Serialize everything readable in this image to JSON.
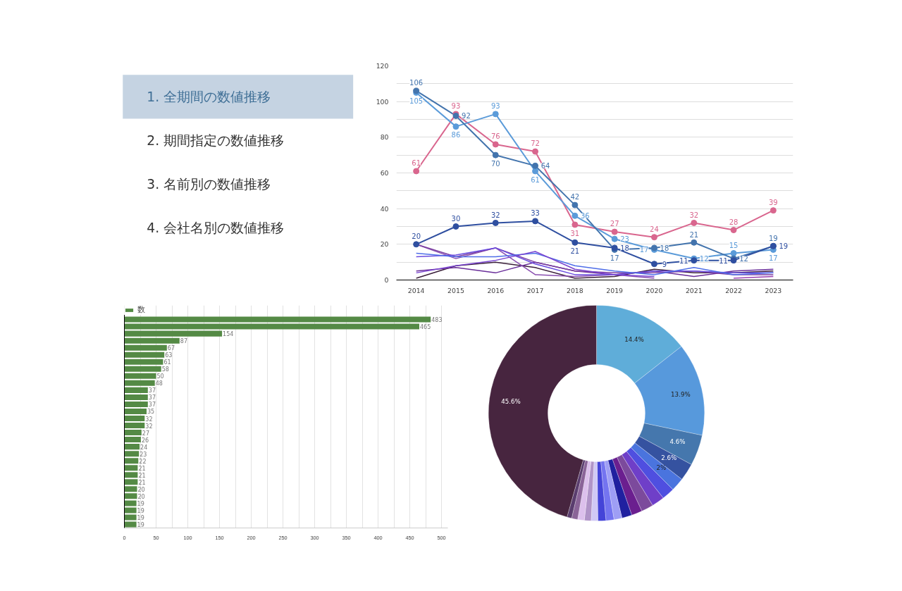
{
  "chart_data": [
    {
      "type": "other",
      "annotations": [
        "1. 全期間の数値推移",
        "2. 期間指定の数値推移",
        "3. 名前別の数値推移",
        "4. 会社名別の数値推移"
      ]
    },
    {
      "type": "line",
      "categories": [
        "2014",
        "2015",
        "2016",
        "2017",
        "2018",
        "2019",
        "2020",
        "2021",
        "2022",
        "2023"
      ],
      "ylim": [
        0,
        120
      ],
      "yticks": [
        0,
        {
          "value": 10,
          "label": null
        },
        20,
        {
          "value": 30,
          "label": null
        },
        40,
        {
          "value": 50,
          "label": null
        },
        60,
        {
          "value": 70,
          "label": null
        },
        80,
        {
          "value": 90,
          "label": null
        },
        100,
        {
          "value": 110,
          "label": null
        },
        120
      ],
      "grid": "y",
      "legend": false,
      "series": [
        {
          "color": "#3a1f3a",
          "marker": "none",
          "values": [
            1,
            8,
            10,
            7,
            1,
            2,
            6,
            4,
            4,
            5
          ]
        },
        {
          "color": "#6a2f9a",
          "marker": "none",
          "values": [
            5,
            7,
            4,
            10,
            5,
            3,
            5,
            2,
            5,
            6
          ]
        },
        {
          "color": "#8a4fb0",
          "marker": "none",
          "values": [
            20,
            12,
            18,
            3,
            2,
            3,
            1,
            null,
            null,
            null
          ]
        },
        {
          "color": "#7b3fa0",
          "marker": "none",
          "values": [
            20,
            13,
            18,
            10,
            5,
            4,
            4,
            5,
            3,
            3
          ]
        },
        {
          "color": "#6a4ce0",
          "marker": "none",
          "values": [
            13,
            14,
            18,
            9,
            3,
            3,
            5,
            5,
            4,
            4
          ]
        },
        {
          "color": "#4f6ee8",
          "marker": "none",
          "values": [
            15,
            13,
            13,
            15,
            8,
            5,
            3,
            7,
            3,
            4
          ]
        },
        {
          "color": "#7a45d0",
          "marker": "none",
          "values": [
            4,
            8,
            11,
            16,
            6,
            3,
            2,
            null,
            null,
            null
          ]
        },
        {
          "color": "#9a3fb0",
          "marker": "none",
          "values": [
            null,
            null,
            null,
            null,
            null,
            null,
            null,
            null,
            1,
            2
          ]
        },
        {
          "color": "#d9668e",
          "marker": "circle",
          "data_labels": true,
          "values": [
            61,
            93,
            76,
            72,
            31,
            27,
            24,
            32,
            28,
            39
          ]
        },
        {
          "color": "#5b9bd9",
          "marker": "circle",
          "data_labels": true,
          "values": [
            105,
            86,
            93,
            61,
            36,
            23,
            17,
            12,
            15,
            17
          ]
        },
        {
          "color": "#4374ad",
          "marker": "circle",
          "data_labels": true,
          "values": [
            106,
            92,
            70,
            64,
            42,
            17,
            18,
            21,
            12,
            19
          ]
        },
        {
          "color": "#2f4fa0",
          "marker": "circle",
          "data_labels": true,
          "values": [
            20,
            30,
            32,
            33,
            21,
            18,
            9,
            11,
            11,
            19
          ]
        }
      ]
    },
    {
      "type": "bar",
      "orientation": "horizontal",
      "categories": [
        null,
        null,
        null,
        null,
        null,
        null,
        null,
        null,
        null,
        null,
        null,
        null,
        null,
        null,
        null,
        null,
        null,
        null,
        null,
        null,
        null,
        null,
        null,
        null,
        null,
        null,
        null,
        null,
        null,
        null
      ],
      "series": [
        {
          "name": "数",
          "color": "#548a45",
          "values": [
            483,
            465,
            154,
            87,
            67,
            63,
            61,
            58,
            50,
            48,
            37,
            37,
            37,
            35,
            32,
            32,
            27,
            26,
            24,
            23,
            22,
            21,
            21,
            21,
            20,
            20,
            19,
            19,
            19,
            19
          ]
        }
      ],
      "xlim": [
        0,
        510
      ],
      "xticks": [
        0,
        {
          "value": 25,
          "label": null
        },
        50,
        {
          "value": 75,
          "label": null
        },
        100,
        {
          "value": 125,
          "label": null
        },
        150,
        {
          "value": 175,
          "label": null
        },
        200,
        {
          "value": 225,
          "label": null
        },
        250,
        {
          "value": 275,
          "label": null
        },
        300,
        {
          "value": 325,
          "label": null
        },
        350,
        {
          "value": 375,
          "label": null
        },
        400,
        {
          "value": 425,
          "label": null
        },
        450,
        {
          "value": 475,
          "label": null
        },
        500
      ],
      "grid": "x",
      "legend": "top left",
      "data_labels": true
    },
    {
      "type": "donut",
      "categories": [
        null,
        null,
        null,
        null,
        null,
        null,
        null,
        null,
        null,
        null,
        null,
        null,
        null,
        null,
        null,
        null,
        null,
        null,
        null
      ],
      "values": [
        14.4,
        13.9,
        4.6,
        2.6,
        2.0,
        1.9,
        1.9,
        1.8,
        1.6,
        1.5,
        1.2,
        1.2,
        1.2,
        1.0,
        1.0,
        1.0,
        0.9,
        0.7,
        45.6
      ],
      "value_labels": [
        "14.4%",
        "13.9%",
        "4.6%",
        "2.6%",
        "2%",
        null,
        null,
        null,
        null,
        null,
        null,
        null,
        null,
        null,
        null,
        null,
        null,
        null,
        "45.6%"
      ],
      "colors": [
        "#5fadd9",
        "#5799dc",
        "#4577ad",
        "#3552a0",
        "#4a74de",
        "#4f4fe0",
        "#6f3fc8",
        "#7c4a9c",
        "#6b1f8f",
        "#2020a0",
        "#9e9ef5",
        "#7474f0",
        "#4444d8",
        "#d0c8f5",
        "#b094c8",
        "#dcc0ec",
        "#8a6498",
        "#5a3d6e",
        "#47253f"
      ]
    }
  ]
}
